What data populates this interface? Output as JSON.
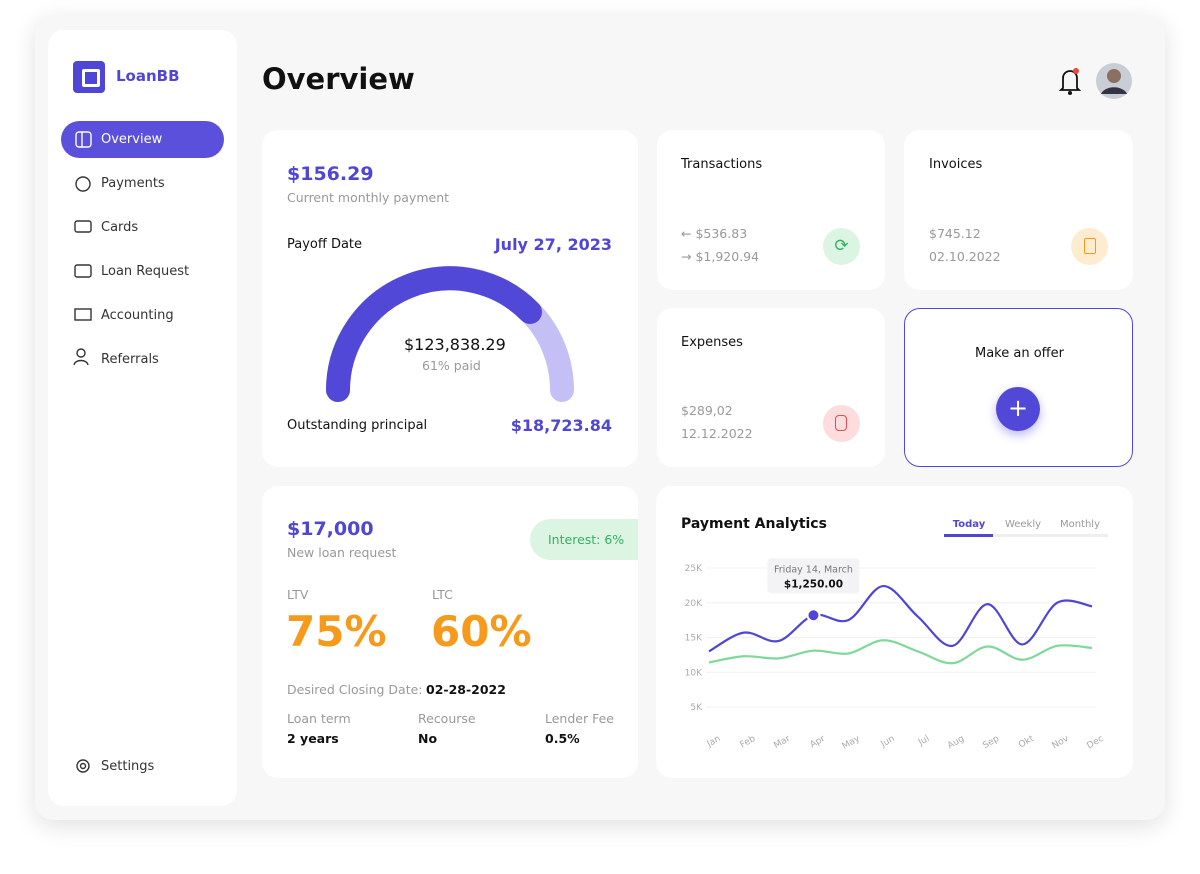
{
  "sidebar": {
    "brand": "LoanBB",
    "nav": [
      "Overview",
      "Payments",
      "Cards",
      "Loan Request",
      "Accounting",
      "Referrals"
    ],
    "settings": "Settings"
  },
  "header": {
    "title": "Overview"
  },
  "payment": {
    "amount": "$156.29",
    "amount_label": "Current monthly payment",
    "payoff_label": "Payoff Date",
    "payoff_date": "July 27, 2023",
    "paid_amount": "$123,838.29",
    "paid_percent": "61% paid",
    "outstanding_label": "Outstanding principal",
    "outstanding": "$18,723.84"
  },
  "transactions": {
    "title": "Transactions",
    "incoming": "$536.83",
    "outgoing": "$1,920.94"
  },
  "invoices": {
    "title": "Invoices",
    "amount": "$745.12",
    "date": "02.10.2022"
  },
  "expenses": {
    "title": "Expenses",
    "amount": "$289,02",
    "date": "12.12.2022"
  },
  "offer": {
    "title": "Make an offer"
  },
  "loan": {
    "amount": "$17,000",
    "amount_label": "New loan request",
    "interest": "Interest: 6%",
    "ltv_label": "LTV",
    "ltv": "75%",
    "ltc_label": "LTC",
    "ltc": "60%",
    "closing_label": "Desired Closing Date:",
    "closing_date": "02-28-2022",
    "terms": [
      {
        "label": "Loan term",
        "value": "2 years"
      },
      {
        "label": "Recourse",
        "value": "No"
      },
      {
        "label": "Lender Fee",
        "value": "0.5%"
      }
    ]
  },
  "analytics": {
    "type": "line",
    "title": "Payment Analytics",
    "tabs": [
      "Today",
      "Weekly",
      "Monthly"
    ],
    "tooltip": {
      "date": "Friday 14, March",
      "amount": "$1,250.00"
    },
    "categories": [
      "Jan",
      "Feb",
      "Mar",
      "Apr",
      "May",
      "Jun",
      "Jul",
      "Aug",
      "Sep",
      "Okt",
      "Nov",
      "Dec"
    ],
    "series": [
      {
        "color": "#4f46d6",
        "values": [
          13000,
          15700,
          14500,
          18200,
          17500,
          22400,
          18000,
          13800,
          19800,
          14000,
          20000,
          19500
        ]
      },
      {
        "color": "#7fd89a",
        "values": [
          11400,
          12300,
          12000,
          13100,
          12700,
          14600,
          13000,
          11300,
          13700,
          11800,
          13800,
          13500
        ]
      }
    ],
    "ylim": [
      5000,
      25000
    ],
    "yticks": [
      {
        "value": 25000,
        "label": "25K"
      },
      {
        "value": 20000,
        "label": "20K"
      },
      {
        "value": 15000,
        "label": "15K"
      },
      {
        "value": 10000,
        "label": "10K"
      },
      {
        "value": 5000,
        "label": "5K"
      }
    ],
    "grid": true
  }
}
